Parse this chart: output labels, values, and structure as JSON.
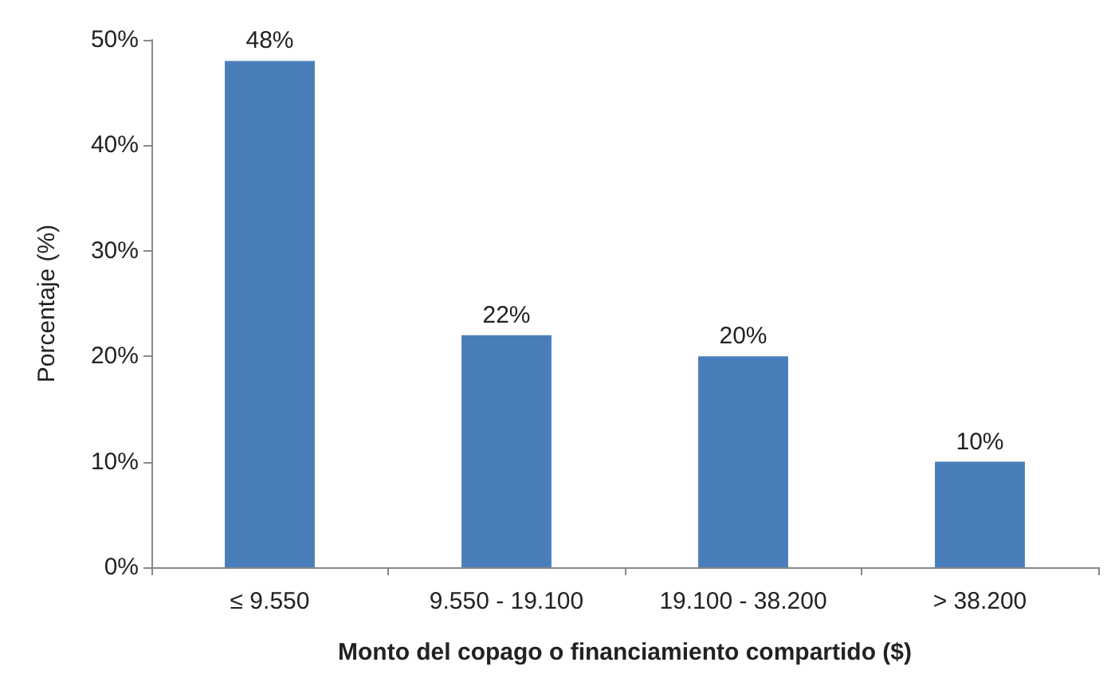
{
  "chart_data": {
    "type": "bar",
    "xlabel": "Monto del copago o financiamiento compartido ($)",
    "ylabel": "Porcentaje (%)",
    "categories": [
      "≤ 9.550",
      "9.550 - 19.100",
      "19.100 - 38.200",
      "> 38.200"
    ],
    "values": [
      48,
      22,
      20,
      10
    ],
    "value_labels": [
      "48%",
      "22%",
      "20%",
      "10%"
    ],
    "color": "#4a7ebb",
    "ylim": [
      0,
      50
    ],
    "yticks": [
      {
        "value": 0,
        "label": "0%"
      },
      {
        "value": 10,
        "label": "10%"
      },
      {
        "value": 20,
        "label": "20%"
      },
      {
        "value": 30,
        "label": "30%"
      },
      {
        "value": 40,
        "label": "40%"
      },
      {
        "value": 50,
        "label": "50%"
      }
    ],
    "grid": false
  }
}
